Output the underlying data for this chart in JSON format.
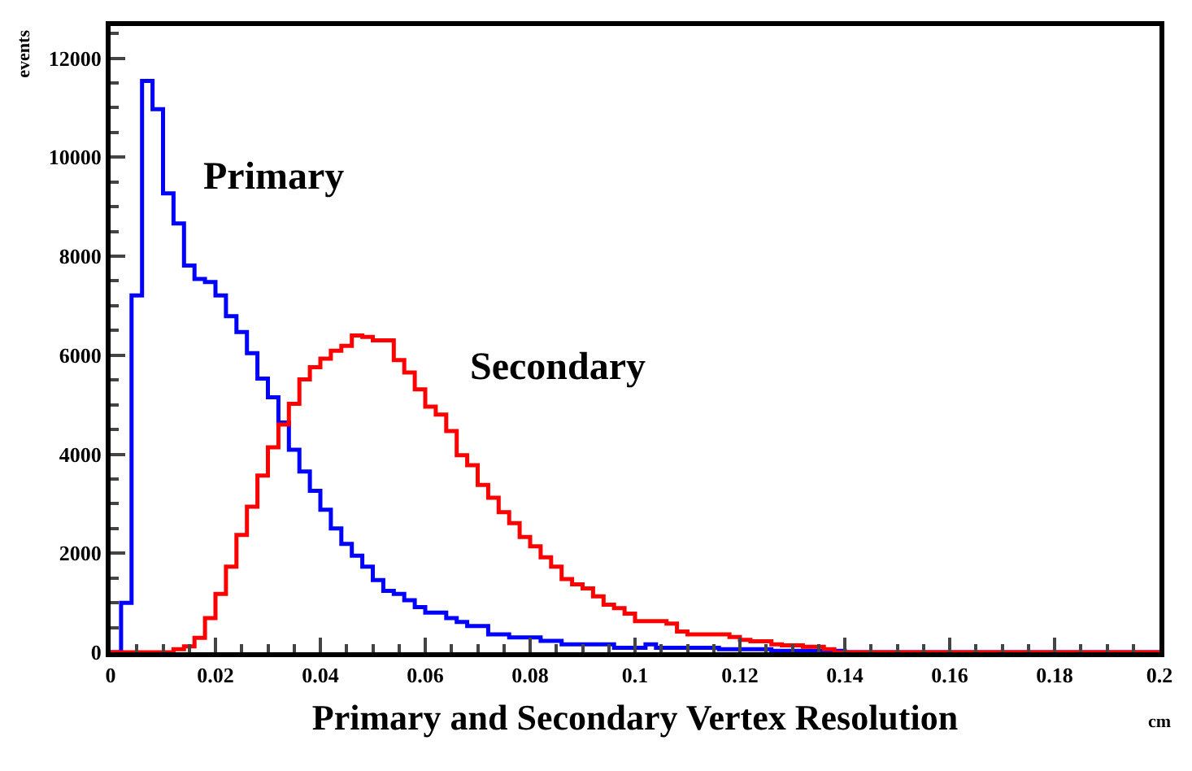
{
  "chart_data": {
    "type": "histogram",
    "xlabel": "Primary and Secondary Vertex Resolution",
    "ylabel": "events",
    "annotations": [
      "cm"
    ],
    "bins": [
      0,
      0.002,
      0.004,
      0.006,
      0.008,
      0.01,
      0.012,
      0.014,
      0.016,
      0.018,
      0.02,
      0.022,
      0.024,
      0.026,
      0.028,
      0.03,
      0.032,
      0.034,
      0.036,
      0.038,
      0.04,
      0.042,
      0.044,
      0.046,
      0.048,
      0.05,
      0.052,
      0.054,
      0.056,
      0.058,
      0.06,
      0.062,
      0.064,
      0.066,
      0.068,
      0.07,
      0.072,
      0.074,
      0.076,
      0.078,
      0.08,
      0.082,
      0.084,
      0.086,
      0.088,
      0.09,
      0.092,
      0.094,
      0.096,
      0.098,
      0.1,
      0.102,
      0.104,
      0.106,
      0.108,
      0.11,
      0.112,
      0.114,
      0.116,
      0.118,
      0.12,
      0.122,
      0.124,
      0.126,
      0.128,
      0.13,
      0.132,
      0.134,
      0.136,
      0.138,
      0.14,
      0.142,
      0.144,
      0.146,
      0.148,
      0.15,
      0.152,
      0.154,
      0.156,
      0.158,
      0.16,
      0.162,
      0.164,
      0.166,
      0.168,
      0.17,
      0.172,
      0.174,
      0.176,
      0.178,
      0.18,
      0.182,
      0.184,
      0.186,
      0.188,
      0.19,
      0.192,
      0.194,
      0.196,
      0.198,
      0.2
    ],
    "series": [
      {
        "name": "Primary",
        "color": "#0000ff",
        "values": [
          0,
          1000,
          7210,
          11540,
          10970,
          9270,
          8660,
          7810,
          7540,
          7480,
          7210,
          6790,
          6470,
          6040,
          5530,
          5150,
          4640,
          4090,
          3650,
          3260,
          2880,
          2500,
          2190,
          1950,
          1730,
          1460,
          1240,
          1180,
          1050,
          910,
          800,
          800,
          690,
          610,
          530,
          530,
          360,
          360,
          300,
          300,
          300,
          230,
          230,
          160,
          160,
          160,
          160,
          160,
          90,
          90,
          90,
          160,
          90,
          90,
          90,
          90,
          90,
          90,
          60,
          60,
          60,
          60,
          60,
          30,
          30,
          30,
          30,
          30,
          30,
          30,
          0,
          0,
          0,
          0,
          0,
          0,
          0,
          0,
          0,
          0,
          0,
          0,
          0,
          0,
          0,
          0,
          0,
          0,
          0,
          0,
          0,
          0,
          0,
          0,
          0,
          0,
          0,
          0,
          0,
          0
        ]
      },
      {
        "name": "Secondary",
        "color": "#ff0000",
        "values": [
          0,
          0,
          0,
          0,
          0,
          0,
          60,
          120,
          290,
          690,
          1180,
          1730,
          2370,
          2940,
          3570,
          4140,
          4600,
          5020,
          5510,
          5760,
          5930,
          6090,
          6190,
          6400,
          6370,
          6300,
          6300,
          5900,
          5650,
          5310,
          4960,
          4800,
          4470,
          3980,
          3780,
          3380,
          3120,
          2830,
          2610,
          2330,
          2140,
          1920,
          1730,
          1480,
          1370,
          1290,
          1130,
          960,
          890,
          780,
          630,
          630,
          630,
          580,
          420,
          360,
          360,
          360,
          360,
          310,
          250,
          220,
          220,
          160,
          140,
          140,
          110,
          110,
          60,
          0,
          0,
          0,
          0,
          0,
          0,
          0,
          0,
          0,
          0,
          0,
          0,
          0,
          0,
          0,
          0,
          0,
          0,
          0,
          0,
          0,
          0,
          0,
          0,
          0,
          0,
          0,
          0,
          0,
          0,
          0
        ]
      }
    ],
    "xlim": [
      0,
      0.2
    ],
    "xticks": [
      0,
      0.02,
      0.04,
      0.06,
      0.08,
      0.1,
      0.12,
      0.14,
      0.16,
      0.18,
      0.2
    ],
    "ylim": [
      0,
      12650
    ],
    "yticks": [
      0,
      2000,
      4000,
      6000,
      8000,
      10000,
      12000
    ]
  }
}
